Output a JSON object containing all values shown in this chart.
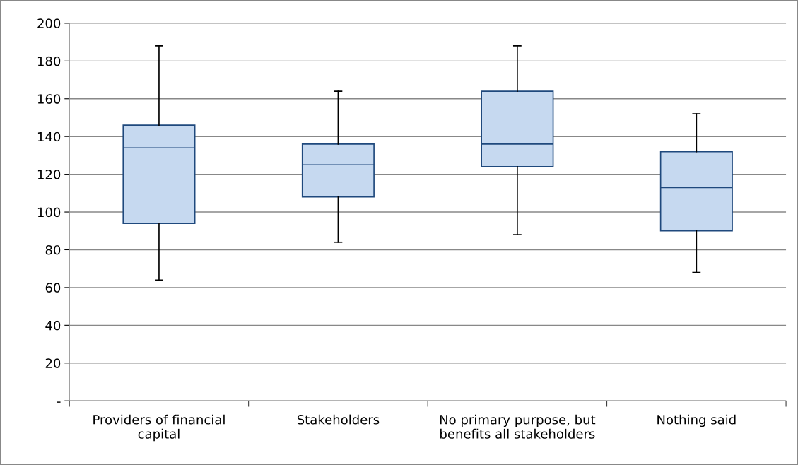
{
  "chart_data": {
    "type": "box",
    "categories": [
      "Providers of financial\ncapital",
      "Stakeholders",
      "No primary purpose, but\nbenefits all stakeholders",
      "Nothing said"
    ],
    "boxes": [
      {
        "low": 64,
        "q1": 94,
        "median": 134,
        "q3": 146,
        "high": 188
      },
      {
        "low": 84,
        "q1": 108,
        "median": 125,
        "q3": 136,
        "high": 164
      },
      {
        "low": 88,
        "q1": 124,
        "median": 136,
        "q3": 164,
        "high": 188
      },
      {
        "low": 68,
        "q1": 90,
        "median": 113,
        "q3": 132,
        "high": 152
      }
    ],
    "color": "#c6d9f0",
    "ylim": [
      0,
      200
    ],
    "yticks": [
      {
        "value": 0,
        "label": "-"
      },
      20,
      40,
      60,
      80,
      100,
      120,
      140,
      160,
      180,
      200
    ],
    "grid": "y"
  }
}
